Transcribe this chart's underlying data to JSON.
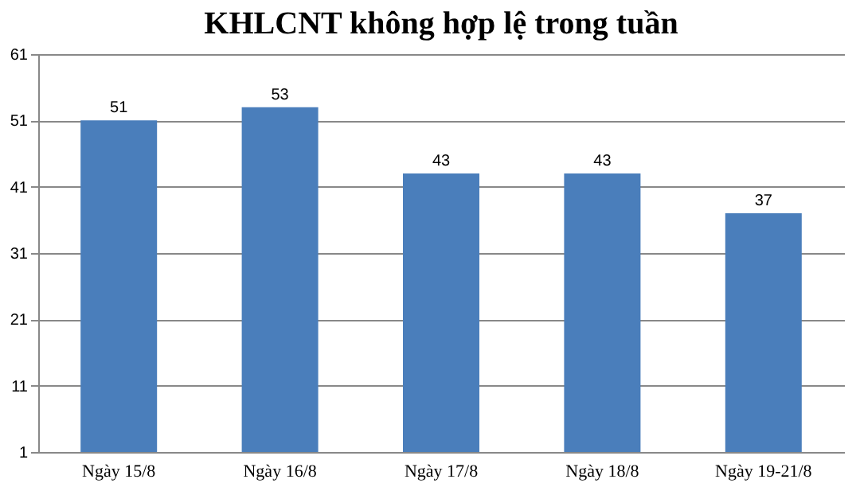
{
  "chart_data": {
    "type": "bar",
    "title": "KHLCNT không hợp lệ trong tuần",
    "categories": [
      "Ngày 15/8",
      "Ngày 16/8",
      "Ngày 17/8",
      "Ngày 18/8",
      "Ngày 19-21/8"
    ],
    "values": [
      51,
      53,
      43,
      43,
      37
    ],
    "color": "#4a7ebb",
    "ylim": [
      1,
      61
    ],
    "yticks": [
      1,
      11,
      21,
      31,
      41,
      51,
      61
    ],
    "grid": "y",
    "data_labels": true
  }
}
